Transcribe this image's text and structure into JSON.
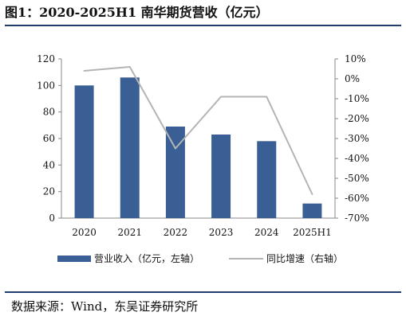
{
  "title": "图1：2020-2025H1 南华期货营收（亿元）",
  "source": "数据来源：Wind，东吴证券研究所",
  "chart_data": {
    "type": "bar",
    "categories": [
      "2020",
      "2021",
      "2022",
      "2023",
      "2024",
      "2025H1"
    ],
    "series": [
      {
        "name": "营业收入（亿元，左轴）",
        "type": "bar",
        "axis": "left",
        "color": "#3a5f94",
        "values": [
          100,
          106,
          69,
          63,
          58,
          11
        ]
      },
      {
        "name": "同比增速（右轴）",
        "type": "line",
        "axis": "right",
        "color": "#b4b4b4",
        "values": [
          4,
          6,
          -35,
          -9,
          -9,
          -58
        ]
      }
    ],
    "y_left": {
      "min": 0,
      "max": 120,
      "ticks": [
        "0",
        "20",
        "40",
        "60",
        "80",
        "100",
        "120"
      ]
    },
    "y_right": {
      "min": -70,
      "max": 10,
      "ticks": [
        "-70%",
        "-60%",
        "-50%",
        "-40%",
        "-30%",
        "-20%",
        "-10%",
        "0%",
        "10%"
      ]
    },
    "legend_position": "bottom",
    "grid": false
  }
}
